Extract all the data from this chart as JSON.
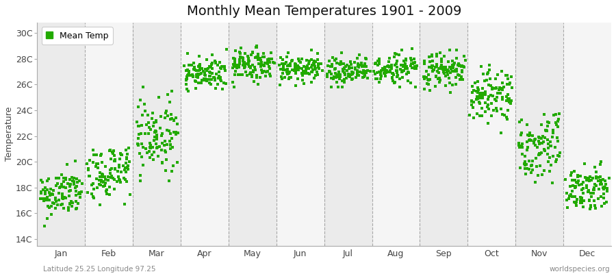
{
  "title": "Monthly Mean Temperatures 1901 - 2009",
  "ylabel": "Temperature",
  "footer_left": "Latitude 25.25 Longitude 97.25",
  "footer_right": "worldspecies.org",
  "legend_label": "Mean Temp",
  "marker_color": "#22aa00",
  "y_tick_labels": [
    "14C",
    "16C",
    "18C",
    "20C",
    "22C",
    "24C",
    "26C",
    "28C",
    "30C"
  ],
  "y_tick_values": [
    14,
    16,
    18,
    20,
    22,
    24,
    26,
    28,
    30
  ],
  "ylim": [
    13.5,
    30.8
  ],
  "months": [
    "Jan",
    "Feb",
    "Mar",
    "Apr",
    "May",
    "Jun",
    "Jul",
    "Aug",
    "Sep",
    "Oct",
    "Nov",
    "Dec"
  ],
  "n_years": 109,
  "monthly_means": [
    17.5,
    19.2,
    22.0,
    26.8,
    27.5,
    27.3,
    27.1,
    27.2,
    27.0,
    25.0,
    21.0,
    18.0
  ],
  "monthly_stds": [
    0.9,
    1.0,
    1.3,
    0.7,
    0.6,
    0.55,
    0.55,
    0.55,
    0.7,
    1.0,
    1.3,
    0.9
  ],
  "monthly_mins": [
    15.0,
    16.0,
    18.5,
    24.5,
    25.8,
    25.9,
    25.8,
    25.8,
    25.2,
    22.0,
    17.5,
    15.5
  ],
  "monthly_maxs": [
    20.2,
    21.5,
    25.8,
    29.4,
    29.6,
    29.0,
    28.8,
    28.8,
    28.9,
    27.8,
    24.5,
    20.5
  ],
  "bg_colors": [
    "#ebebeb",
    "#f5f5f5"
  ],
  "bg_alpha": 1.0,
  "grid_color": "#888888",
  "title_fontsize": 14,
  "label_fontsize": 9,
  "tick_fontsize": 9,
  "fig_facecolor": "#ffffff"
}
